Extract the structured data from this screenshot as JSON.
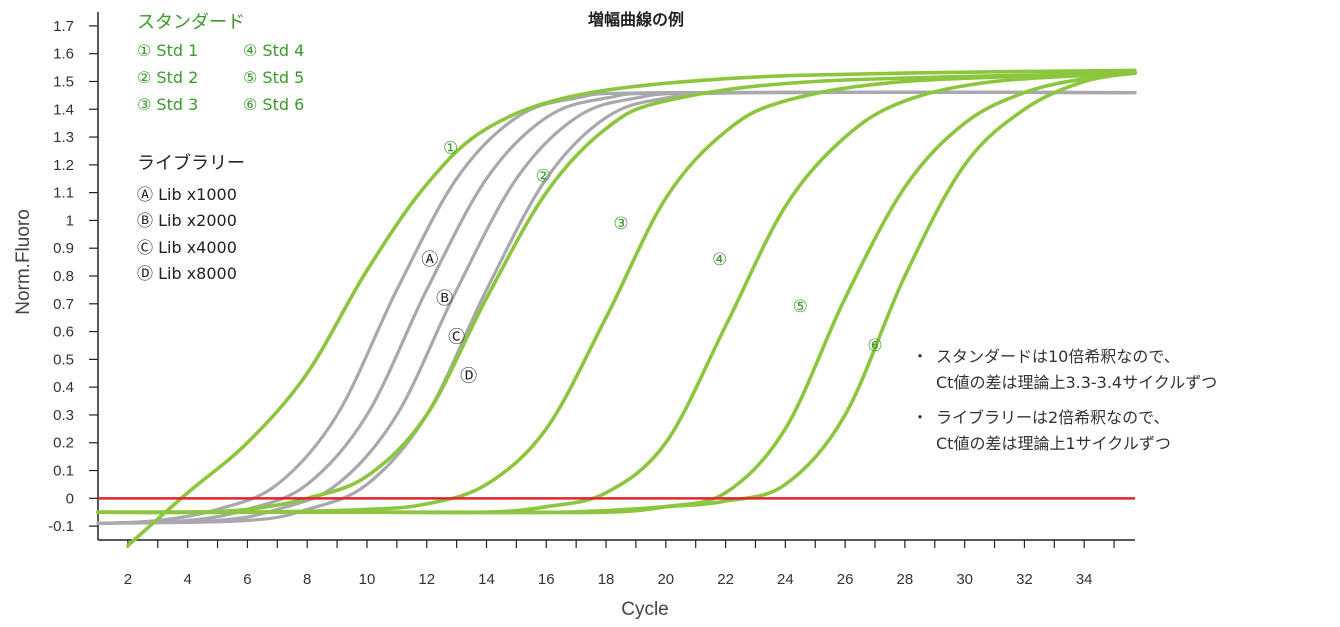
{
  "chart_data": {
    "type": "line",
    "title": "増幅曲線の例",
    "xlabel": "Cycle",
    "ylabel": "Norm.Fluoro",
    "xlim": [
      1,
      35.7
    ],
    "ylim": [
      -0.15,
      1.75
    ],
    "x_ticks": [
      2,
      4,
      6,
      8,
      10,
      12,
      14,
      16,
      18,
      20,
      22,
      24,
      26,
      28,
      30,
      32,
      34
    ],
    "y_ticks": [
      -0.1,
      0,
      0.1,
      0.2,
      0.3,
      0.4,
      0.5,
      0.6,
      0.7,
      0.8,
      0.9,
      1,
      1.1,
      1.2,
      1.3,
      1.4,
      1.5,
      1.6,
      1.7
    ],
    "y_tick_labels": [
      "-0.1",
      "0",
      "0.1",
      "0.2",
      "0.3",
      "0.4",
      "0.5",
      "0.6",
      "0.7",
      "0.8",
      "0.9",
      "1",
      "1.1",
      "1.2",
      "1.3",
      "1.4",
      "1.5",
      "1.6",
      "1.7"
    ],
    "threshold": {
      "y": 0,
      "color": "#e0252d"
    },
    "grid": false,
    "series": [
      {
        "name": "① Std 1",
        "group": "standard",
        "color": "#8cc63f",
        "points": [
          [
            2,
            -0.17
          ],
          [
            4,
            0.02
          ],
          [
            6,
            0.2
          ],
          [
            8,
            0.45
          ],
          [
            10,
            0.82
          ],
          [
            12,
            1.13
          ],
          [
            14,
            1.33
          ],
          [
            17,
            1.45
          ],
          [
            22,
            1.51
          ],
          [
            28,
            1.53
          ],
          [
            35.7,
            1.54
          ]
        ]
      },
      {
        "name": "② Std 2",
        "group": "standard",
        "color": "#8cc63f",
        "points": [
          [
            1,
            -0.05
          ],
          [
            4,
            -0.05
          ],
          [
            6,
            -0.04
          ],
          [
            8,
            0.0
          ],
          [
            10,
            0.08
          ],
          [
            12,
            0.3
          ],
          [
            14,
            0.72
          ],
          [
            16,
            1.1
          ],
          [
            18,
            1.33
          ],
          [
            20,
            1.43
          ],
          [
            25,
            1.5
          ],
          [
            35.7,
            1.53
          ]
        ]
      },
      {
        "name": "③ Std 3",
        "group": "standard",
        "color": "#8cc63f",
        "points": [
          [
            1,
            -0.05
          ],
          [
            6,
            -0.05
          ],
          [
            10,
            -0.04
          ],
          [
            12,
            -0.02
          ],
          [
            14,
            0.05
          ],
          [
            16,
            0.25
          ],
          [
            18,
            0.65
          ],
          [
            20,
            1.08
          ],
          [
            22,
            1.32
          ],
          [
            24,
            1.43
          ],
          [
            28,
            1.5
          ],
          [
            35.7,
            1.53
          ]
        ]
      },
      {
        "name": "④ Std 4",
        "group": "standard",
        "color": "#8cc63f",
        "points": [
          [
            1,
            -0.05
          ],
          [
            10,
            -0.05
          ],
          [
            14,
            -0.05
          ],
          [
            16,
            -0.03
          ],
          [
            18,
            0.02
          ],
          [
            20,
            0.2
          ],
          [
            22,
            0.62
          ],
          [
            24,
            1.05
          ],
          [
            26,
            1.3
          ],
          [
            28,
            1.43
          ],
          [
            31,
            1.5
          ],
          [
            35.7,
            1.53
          ]
        ]
      },
      {
        "name": "⑤ Std 5",
        "group": "standard",
        "color": "#8cc63f",
        "points": [
          [
            1,
            -0.05
          ],
          [
            14,
            -0.05
          ],
          [
            18,
            -0.05
          ],
          [
            20,
            -0.03
          ],
          [
            22,
            0.02
          ],
          [
            24,
            0.25
          ],
          [
            26,
            0.72
          ],
          [
            28,
            1.12
          ],
          [
            30,
            1.35
          ],
          [
            32,
            1.46
          ],
          [
            34,
            1.51
          ],
          [
            35.7,
            1.53
          ]
        ]
      },
      {
        "name": "⑥ Std 6",
        "group": "standard",
        "color": "#8cc63f",
        "points": [
          [
            1,
            -0.05
          ],
          [
            10,
            -0.05
          ],
          [
            16.5,
            -0.05
          ],
          [
            20,
            -0.03
          ],
          [
            22,
            -0.01
          ],
          [
            24,
            0.05
          ],
          [
            26,
            0.3
          ],
          [
            28,
            0.8
          ],
          [
            30,
            1.2
          ],
          [
            32,
            1.4
          ],
          [
            34,
            1.5
          ],
          [
            35.7,
            1.53
          ]
        ]
      },
      {
        "name": "Ⓐ Lib x1000",
        "group": "library",
        "color": "#a7a9ac",
        "points": [
          [
            1,
            -0.09
          ],
          [
            3,
            -0.08
          ],
          [
            5,
            -0.04
          ],
          [
            7,
            0.05
          ],
          [
            9,
            0.3
          ],
          [
            11,
            0.75
          ],
          [
            13,
            1.15
          ],
          [
            15,
            1.37
          ],
          [
            17,
            1.44
          ],
          [
            20,
            1.46
          ],
          [
            35.7,
            1.46
          ]
        ]
      },
      {
        "name": "Ⓑ Lib x2000",
        "group": "library",
        "color": "#a7a9ac",
        "points": [
          [
            1,
            -0.09
          ],
          [
            4,
            -0.08
          ],
          [
            6,
            -0.04
          ],
          [
            8,
            0.05
          ],
          [
            10,
            0.3
          ],
          [
            12,
            0.75
          ],
          [
            14,
            1.15
          ],
          [
            16,
            1.37
          ],
          [
            18,
            1.44
          ],
          [
            21,
            1.46
          ],
          [
            35.7,
            1.46
          ]
        ]
      },
      {
        "name": "Ⓒ Lib x4000",
        "group": "library",
        "color": "#a7a9ac",
        "points": [
          [
            1,
            -0.09
          ],
          [
            5,
            -0.08
          ],
          [
            7,
            -0.04
          ],
          [
            9,
            0.05
          ],
          [
            11,
            0.3
          ],
          [
            13,
            0.75
          ],
          [
            15,
            1.15
          ],
          [
            17,
            1.37
          ],
          [
            19,
            1.44
          ],
          [
            22,
            1.46
          ],
          [
            35.7,
            1.46
          ]
        ]
      },
      {
        "name": "Ⓓ Lib x8000",
        "group": "library",
        "color": "#a7a9ac",
        "points": [
          [
            1,
            -0.09
          ],
          [
            6,
            -0.08
          ],
          [
            8,
            -0.04
          ],
          [
            10,
            0.05
          ],
          [
            12,
            0.3
          ],
          [
            14,
            0.75
          ],
          [
            16,
            1.15
          ],
          [
            18,
            1.37
          ],
          [
            20,
            1.44
          ],
          [
            23,
            1.46
          ],
          [
            35.7,
            1.46
          ]
        ]
      }
    ],
    "curve_labels": [
      {
        "text": "①",
        "group": "standard",
        "x": 12.8,
        "y": 1.24
      },
      {
        "text": "②",
        "group": "standard",
        "x": 15.9,
        "y": 1.14
      },
      {
        "text": "③",
        "group": "standard",
        "x": 18.5,
        "y": 0.97
      },
      {
        "text": "④",
        "group": "standard",
        "x": 21.8,
        "y": 0.84
      },
      {
        "text": "⑤",
        "group": "standard",
        "x": 24.5,
        "y": 0.67
      },
      {
        "text": "⑥",
        "group": "standard",
        "x": 27.0,
        "y": 0.53
      },
      {
        "text": "Ⓐ",
        "group": "library",
        "x": 12.1,
        "y": 0.84
      },
      {
        "text": "Ⓑ",
        "group": "library",
        "x": 12.6,
        "y": 0.7
      },
      {
        "text": "Ⓒ",
        "group": "library",
        "x": 13.0,
        "y": 0.56
      },
      {
        "text": "Ⓓ",
        "group": "library",
        "x": 13.4,
        "y": 0.42
      }
    ]
  },
  "legend": {
    "standard_heading": "スタンダード",
    "standard_items": [
      "① Std 1",
      "② Std 2",
      "③ Std 3",
      "④ Std 4",
      "⑤ Std 5",
      "⑥ Std 6"
    ],
    "library_heading": "ライブラリー",
    "library_items": [
      "Ⓐ Lib x1000",
      "Ⓑ Lib x2000",
      "Ⓒ Lib x4000",
      "Ⓓ Lib x8000"
    ]
  },
  "notes": [
    {
      "bullet": "・",
      "line1": "スタンダードは10倍希釈なので、",
      "line2": "Ct値の差は理論上3.3-3.4サイクルずつ"
    },
    {
      "bullet": "・",
      "line1": "ライブラリーは2倍希釈なので、",
      "line2": "Ct値の差は理論上1サイクルずつ"
    }
  ]
}
